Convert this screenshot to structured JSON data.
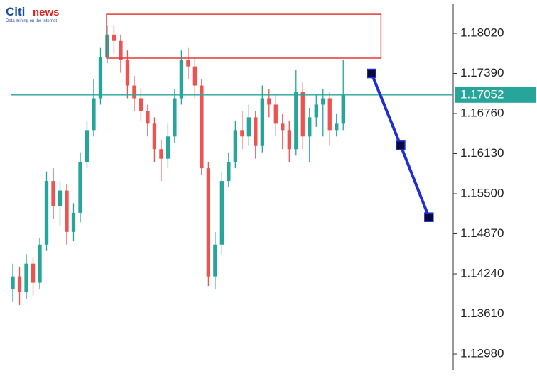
{
  "logo": {
    "brand": "Citi",
    "name": "news",
    "tagline": "Data mining on the internet"
  },
  "chart_data": {
    "type": "candlestick",
    "up_color": "#26a69a",
    "down_color": "#ef5350",
    "xlim": [
      -1.9,
      65.3
    ],
    "ylim": [
      1.12724,
      1.18544
    ],
    "yticks": [
      {
        "value": 1.1802,
        "label": "1.18020"
      },
      {
        "value": 1.1739,
        "label": "1.17390"
      },
      {
        "value": 1.1676,
        "label": "1.16760"
      },
      {
        "value": 1.1613,
        "label": "1.16130"
      },
      {
        "value": 1.155,
        "label": "1.15500"
      },
      {
        "value": 1.1487,
        "label": "1.14870"
      },
      {
        "value": 1.1424,
        "label": "1.14240"
      },
      {
        "value": 1.1361,
        "label": "1.13610"
      },
      {
        "value": 1.1298,
        "label": "1.12980"
      }
    ],
    "candles": [
      [
        1.14,
        1.144,
        1.138,
        1.142
      ],
      [
        1.142,
        1.1435,
        1.1375,
        1.1395
      ],
      [
        1.1395,
        1.1455,
        1.1385,
        1.144
      ],
      [
        1.144,
        1.145,
        1.139,
        1.141
      ],
      [
        1.141,
        1.148,
        1.14,
        1.147
      ],
      [
        1.147,
        1.1585,
        1.146,
        1.157
      ],
      [
        1.157,
        1.159,
        1.151,
        1.153
      ],
      [
        1.153,
        1.157,
        1.15,
        1.1555
      ],
      [
        1.1555,
        1.1565,
        1.147,
        1.149
      ],
      [
        1.149,
        1.1535,
        1.1475,
        1.152
      ],
      [
        1.152,
        1.1615,
        1.1505,
        1.16
      ],
      [
        1.16,
        1.1665,
        1.159,
        1.165
      ],
      [
        1.165,
        1.173,
        1.164,
        1.17
      ],
      [
        1.17,
        1.178,
        1.169,
        1.1765
      ],
      [
        1.1765,
        1.1815,
        1.1755,
        1.18
      ],
      [
        1.18,
        1.1815,
        1.177,
        1.179
      ],
      [
        1.179,
        1.18,
        1.174,
        1.176
      ],
      [
        1.176,
        1.1775,
        1.17,
        1.172
      ],
      [
        1.172,
        1.1735,
        1.168,
        1.17
      ],
      [
        1.17,
        1.1715,
        1.1665,
        1.168
      ],
      [
        1.168,
        1.169,
        1.164,
        1.166
      ],
      [
        1.166,
        1.167,
        1.16,
        1.162
      ],
      [
        1.162,
        1.1635,
        1.157,
        1.1605
      ],
      [
        1.1605,
        1.166,
        1.159,
        1.164
      ],
      [
        1.164,
        1.1715,
        1.163,
        1.17
      ],
      [
        1.17,
        1.1775,
        1.169,
        1.176
      ],
      [
        1.176,
        1.178,
        1.173,
        1.175
      ],
      [
        1.175,
        1.1765,
        1.17,
        1.172
      ],
      [
        1.172,
        1.173,
        1.158,
        1.159
      ],
      [
        1.159,
        1.16,
        1.1405,
        1.142
      ],
      [
        1.142,
        1.149,
        1.14,
        1.147
      ],
      [
        1.147,
        1.1585,
        1.1455,
        1.157
      ],
      [
        1.157,
        1.1615,
        1.156,
        1.16
      ],
      [
        1.16,
        1.1665,
        1.159,
        1.165
      ],
      [
        1.165,
        1.168,
        1.162,
        1.164
      ],
      [
        1.164,
        1.169,
        1.1625,
        1.167
      ],
      [
        1.167,
        1.168,
        1.1605,
        1.1625
      ],
      [
        1.1625,
        1.172,
        1.1615,
        1.17
      ],
      [
        1.17,
        1.1715,
        1.167,
        1.169
      ],
      [
        1.169,
        1.1705,
        1.164,
        1.166
      ],
      [
        1.166,
        1.1675,
        1.162,
        1.165
      ],
      [
        1.165,
        1.1665,
        1.16,
        1.162
      ],
      [
        1.162,
        1.1745,
        1.161,
        1.171
      ],
      [
        1.171,
        1.1725,
        1.162,
        1.164
      ],
      [
        1.164,
        1.1685,
        1.16,
        1.167
      ],
      [
        1.167,
        1.1705,
        1.1655,
        1.169
      ],
      [
        1.169,
        1.1715,
        1.164,
        1.17
      ],
      [
        1.17,
        1.171,
        1.1625,
        1.165
      ],
      [
        1.165,
        1.1675,
        1.164,
        1.166
      ],
      [
        1.166,
        1.176,
        1.165,
        1.17052
      ]
    ],
    "last_price": 1.17052,
    "last_price_color": "#26a69a",
    "zone": {
      "x": [
        13.9,
        54.6
      ],
      "y": [
        1.1763,
        1.1832
      ],
      "color": "#e53935"
    },
    "projection": {
      "x": [
        53.2,
        57.5,
        61.7
      ],
      "values": [
        1.1739,
        1.1626,
        1.1513
      ],
      "color": "#1f2fd6"
    }
  }
}
